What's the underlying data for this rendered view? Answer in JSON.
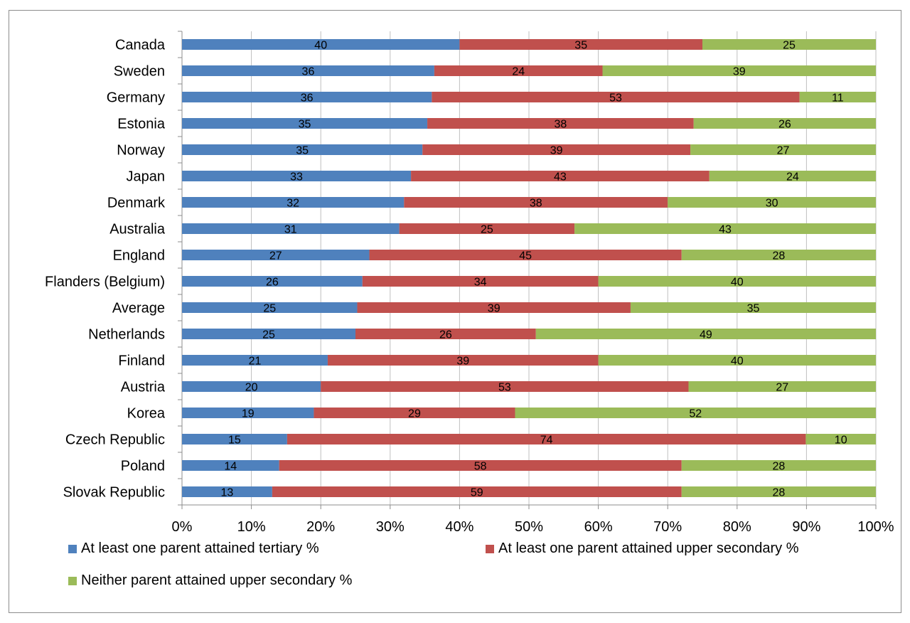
{
  "chart_data": {
    "type": "bar",
    "orientation": "horizontal",
    "stacked": "percent",
    "categories": [
      "Canada",
      "Sweden",
      "Germany",
      "Estonia",
      "Norway",
      "Japan",
      "Denmark",
      "Australia",
      "England",
      "Flanders (Belgium)",
      "Average",
      "Netherlands",
      "Finland",
      "Austria",
      "Korea",
      "Czech Republic",
      "Poland",
      "Slovak Republic"
    ],
    "series": [
      {
        "name": "At least one parent attained tertiary %",
        "color": "#4f81bd",
        "values": [
          40,
          36,
          36,
          35,
          35,
          33,
          32,
          31,
          27,
          26,
          25,
          25,
          21,
          20,
          19,
          15,
          14,
          13
        ]
      },
      {
        "name": "At least one parent attained upper secondary %",
        "color": "#c0504d",
        "values": [
          35,
          24,
          53,
          38,
          39,
          43,
          38,
          25,
          45,
          34,
          39,
          26,
          39,
          53,
          29,
          74,
          58,
          59
        ]
      },
      {
        "name": "Neither parent attained upper secondary %",
        "color": "#9bbb59",
        "values": [
          25,
          39,
          11,
          26,
          27,
          24,
          30,
          43,
          28,
          40,
          35,
          49,
          40,
          27,
          52,
          10,
          28,
          28
        ]
      }
    ],
    "x_ticks": [
      "0%",
      "10%",
      "20%",
      "30%",
      "40%",
      "50%",
      "60%",
      "70%",
      "80%",
      "90%",
      "100%"
    ],
    "xlim": [
      0,
      100
    ],
    "grid": true,
    "legend_position": "bottom"
  }
}
